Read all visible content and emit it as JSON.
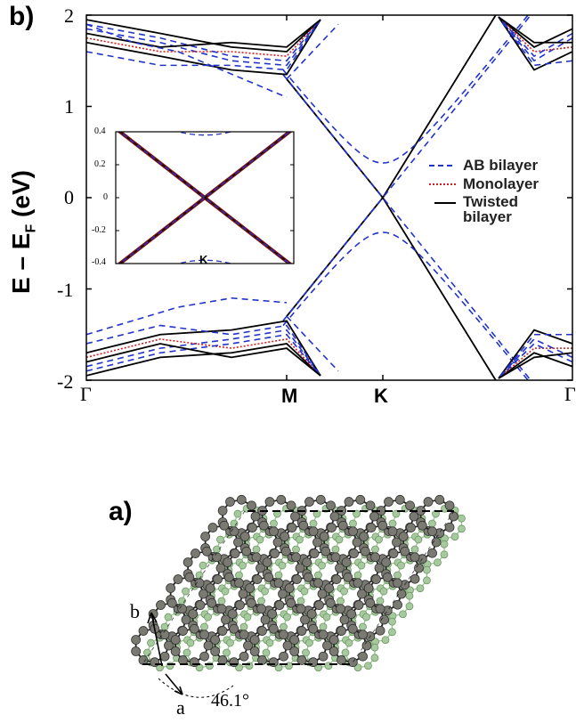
{
  "panel_b": {
    "label": "b)",
    "ylabel_main": "E – E",
    "ylabel_sub": "F",
    "ylabel_unit": " (eV)",
    "yticks": [
      "2",
      "1",
      "0",
      "-1",
      "-2"
    ],
    "xticks": [
      "Γ",
      "M",
      "K",
      "Γ"
    ],
    "legend": [
      {
        "label": "AB bilayer",
        "color": "#2233cc",
        "style": "dashed"
      },
      {
        "label": "Monolayer",
        "color": "#cc2222",
        "style": "dotted"
      },
      {
        "label": "Twisted\nbilayer",
        "color": "#000000",
        "style": "solid"
      }
    ],
    "inset": {
      "yticks": [
        "0.4",
        "0.2",
        "0",
        "-0.2",
        "-0.4"
      ],
      "xtick": "K"
    }
  },
  "chart_data": {
    "type": "line",
    "xlabel": "",
    "ylabel": "E – E_F (eV)",
    "ylim": [
      -2,
      2
    ],
    "x_ticks": [
      "Γ",
      "M",
      "K",
      "Γ"
    ],
    "series": [
      {
        "name": "AB bilayer",
        "note": "dashed",
        "dirac_gap_eV": 0.38
      },
      {
        "name": "Monolayer",
        "note": "dotted"
      },
      {
        "name": "Twisted bilayer",
        "note": "solid"
      }
    ],
    "dirac_point": {
      "x": "K",
      "y": 0
    }
  },
  "panel_a": {
    "label": "a)",
    "vector_a": "a",
    "vector_b": "b",
    "angle": "46.1°"
  },
  "colors": {
    "ab_bilayer": "#2233cc",
    "monolayer": "#cc2222",
    "twisted": "#000000",
    "atom_top": "#7a7a72",
    "atom_bottom": "#a8c8a0"
  }
}
